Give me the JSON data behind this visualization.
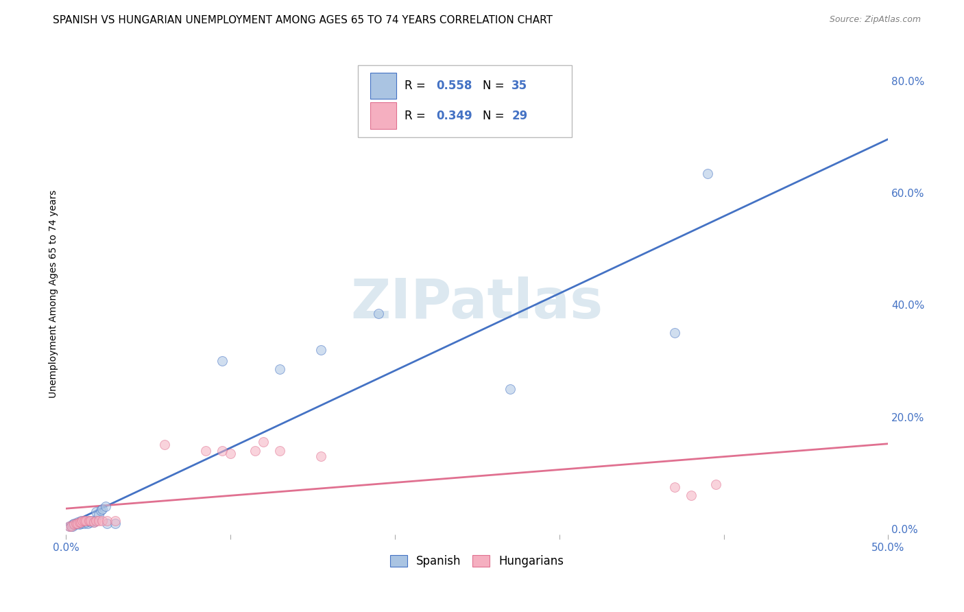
{
  "title": "SPANISH VS HUNGARIAN UNEMPLOYMENT AMONG AGES 65 TO 74 YEARS CORRELATION CHART",
  "source": "Source: ZipAtlas.com",
  "ylabel": "Unemployment Among Ages 65 to 74 years",
  "xlim": [
    0.0,
    0.5
  ],
  "ylim": [
    -0.01,
    0.85
  ],
  "xticks": [
    0.0,
    0.1,
    0.2,
    0.3,
    0.4,
    0.5
  ],
  "xticklabels_show": [
    "0.0%",
    "",
    "",
    "",
    "",
    "50.0%"
  ],
  "yticks_right": [
    0.0,
    0.2,
    0.4,
    0.6,
    0.8
  ],
  "ytick_right_labels": [
    "0.0%",
    "20.0%",
    "40.0%",
    "60.0%",
    "80.0%"
  ],
  "spanish_color": "#aac4e2",
  "hungarian_color": "#f5afc0",
  "spanish_line_color": "#4472c4",
  "hungarian_line_color": "#e07090",
  "spanish_x": [
    0.002,
    0.003,
    0.004,
    0.004,
    0.005,
    0.006,
    0.006,
    0.007,
    0.007,
    0.008,
    0.008,
    0.009,
    0.009,
    0.01,
    0.011,
    0.012,
    0.013,
    0.014,
    0.015,
    0.016,
    0.017,
    0.018,
    0.02,
    0.021,
    0.022,
    0.024,
    0.025,
    0.03,
    0.095,
    0.13,
    0.155,
    0.19,
    0.27,
    0.37,
    0.39
  ],
  "spanish_y": [
    0.005,
    0.005,
    0.005,
    0.008,
    0.01,
    0.008,
    0.01,
    0.01,
    0.012,
    0.008,
    0.012,
    0.01,
    0.015,
    0.012,
    0.01,
    0.012,
    0.01,
    0.015,
    0.012,
    0.015,
    0.012,
    0.03,
    0.025,
    0.033,
    0.035,
    0.04,
    0.01,
    0.01,
    0.3,
    0.285,
    0.32,
    0.385,
    0.25,
    0.35,
    0.635
  ],
  "hungarian_x": [
    0.002,
    0.003,
    0.005,
    0.006,
    0.007,
    0.008,
    0.009,
    0.01,
    0.011,
    0.012,
    0.014,
    0.015,
    0.017,
    0.018,
    0.02,
    0.022,
    0.025,
    0.03,
    0.06,
    0.085,
    0.095,
    0.1,
    0.115,
    0.12,
    0.13,
    0.155,
    0.37,
    0.38,
    0.395
  ],
  "hungarian_y": [
    0.005,
    0.005,
    0.008,
    0.01,
    0.01,
    0.012,
    0.012,
    0.015,
    0.015,
    0.015,
    0.015,
    0.015,
    0.012,
    0.015,
    0.015,
    0.015,
    0.015,
    0.015,
    0.15,
    0.14,
    0.14,
    0.135,
    0.14,
    0.155,
    0.14,
    0.13,
    0.075,
    0.06,
    0.08
  ],
  "watermark": "ZIPatlas",
  "watermark_color": "#dce8f0",
  "background_color": "#ffffff",
  "grid_color": "#cccccc",
  "title_fontsize": 11,
  "axis_label_fontsize": 10,
  "tick_fontsize": 11,
  "marker_size": 100,
  "marker_alpha": 0.55,
  "line_width": 2.0
}
